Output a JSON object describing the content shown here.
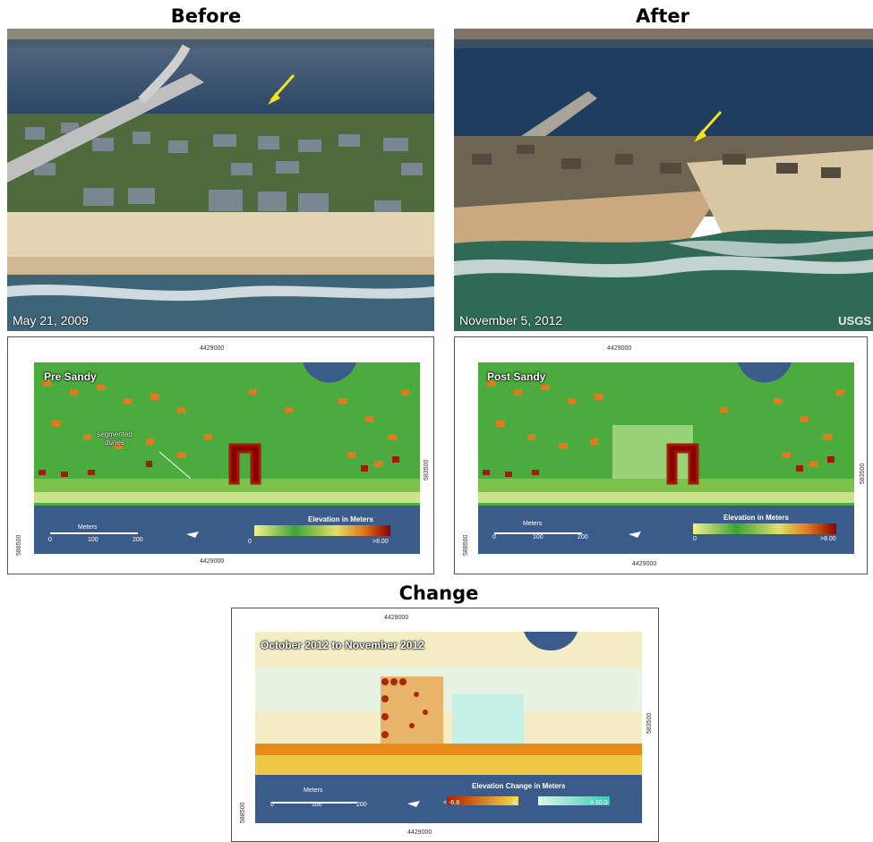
{
  "titles": {
    "before": "Before",
    "after": "After",
    "change": "Change"
  },
  "photos": {
    "before_date": "May 21, 2009",
    "after_date": "November 5, 2012",
    "after_logo": "USGS"
  },
  "maps": {
    "pre": {
      "label": "Pre Sandy",
      "annotation_line1": "segmented",
      "annotation_line2": "dunes",
      "coord_top": "4429000",
      "coord_bottom": "4429000",
      "coord_right": "583500",
      "coord_left": "588500",
      "scale_title": "Meters",
      "scale_ticks": [
        "0",
        "100",
        "200"
      ],
      "legend_title": "Elevation in Meters",
      "legend_min": "0",
      "legend_max": ">8.00"
    },
    "post": {
      "label": "Post Sandy",
      "coord_top": "4429000",
      "coord_bottom": "4429000",
      "coord_right": "583500",
      "coord_left": "588500",
      "scale_title": "Meters",
      "scale_ticks": [
        "0",
        "100",
        "200"
      ],
      "legend_title": "Elevation in Meters",
      "legend_min": "0",
      "legend_max": ">8.00"
    },
    "change": {
      "label": "October 2012 to November 2012",
      "coord_top": "4429000",
      "coord_bottom": "4429000",
      "coord_right": "583500",
      "coord_left": "588500",
      "scale_title": "Meters",
      "scale_ticks": [
        "0",
        "100",
        "200"
      ],
      "legend_title": "Elevation Change in Meters",
      "legend_neg_min": "< -6.8",
      "legend_neg_max": "-2",
      "legend_pos_min": "2",
      "legend_pos_max": "> 10.0"
    }
  },
  "colors": {
    "water": "#3b5b8a",
    "sand": "#e6d3b3",
    "elev_low": "#f2f08a",
    "elev_mid": "#3fa33a",
    "elev_high": "#8b0000",
    "change_neg": "#b31b00",
    "change_pos": "#3fc9b0"
  }
}
